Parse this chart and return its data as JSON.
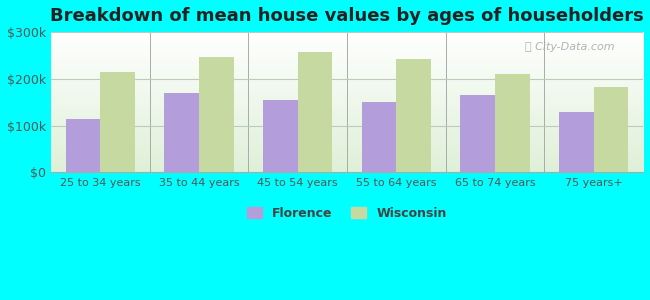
{
  "title": "Breakdown of mean house values by ages of householders",
  "categories": [
    "25 to 34 years",
    "35 to 44 years",
    "45 to 54 years",
    "55 to 64 years",
    "65 to 74 years",
    "75 years+"
  ],
  "florence_values": [
    113000,
    170000,
    155000,
    150000,
    165000,
    130000
  ],
  "wisconsin_values": [
    215000,
    247000,
    257000,
    243000,
    210000,
    182000
  ],
  "florence_color": "#b39ddb",
  "wisconsin_color": "#c5d9a0",
  "background_color": "#00ffff",
  "ylim": [
    0,
    300000
  ],
  "yticks": [
    0,
    100000,
    200000,
    300000
  ],
  "ytick_labels": [
    "$0",
    "$100k",
    "$200k",
    "$300k"
  ],
  "legend_florence": "Florence",
  "legend_wisconsin": "Wisconsin",
  "title_fontsize": 13,
  "bar_width": 0.35
}
